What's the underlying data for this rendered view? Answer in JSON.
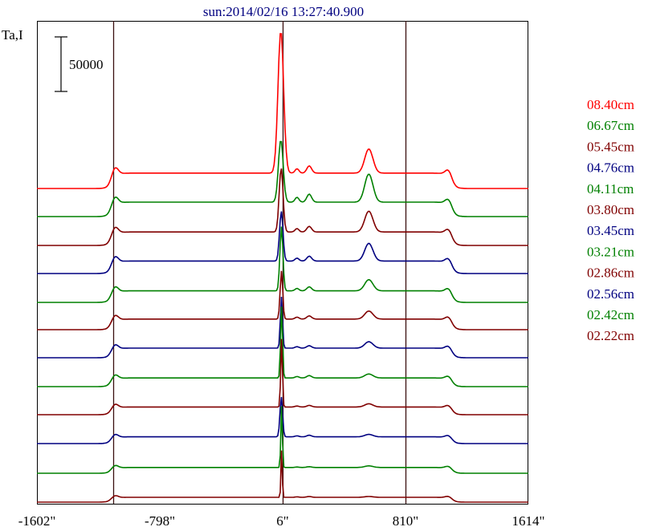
{
  "chart_data": {
    "type": "line",
    "title": "sun:2014/02/16 13:27:40.900",
    "ylabel": "Ta,I",
    "scale_bar_label": "50000",
    "x_tick_labels": [
      "-1602\"",
      "-798\"",
      "6\"",
      "810\"",
      "1614\""
    ],
    "x_ticks": [
      -1602,
      -798,
      6,
      810,
      1614
    ],
    "xlim": [
      -1602,
      1614
    ],
    "vertical_markers": [
      -1104,
      6,
      810
    ],
    "legend_position": "right",
    "series": [
      {
        "name": "08.40cm",
        "color": "#ff0000",
        "baseline": 235,
        "limb": 3.2,
        "spike": 178,
        "spike_x": -6,
        "spike_w": 26,
        "bump1": 9,
        "bump2": 30,
        "bump2_x": 570
      },
      {
        "name": "06.67cm",
        "color": "#008000",
        "baseline": 270,
        "limb": 3.0,
        "spike": 78,
        "spike_x": -6,
        "spike_w": 22,
        "bump1": 10,
        "bump2": 35,
        "bump2_x": 570
      },
      {
        "name": "05.45cm",
        "color": "#800000",
        "baseline": 306,
        "limb": 2.8,
        "spike": 80,
        "spike_x": -4,
        "spike_w": 18,
        "bump1": 7,
        "bump2": 26,
        "bump2_x": 570
      },
      {
        "name": "04.76cm",
        "color": "#000080",
        "baseline": 341,
        "limb": 2.6,
        "spike": 62,
        "spike_x": -3,
        "spike_w": 16,
        "bump1": 6,
        "bump2": 22,
        "bump2_x": 570
      },
      {
        "name": "04.11cm",
        "color": "#008000",
        "baseline": 377,
        "limb": 2.4,
        "spike": 80,
        "spike_x": -2,
        "spike_w": 14,
        "bump1": 5,
        "bump2": 14,
        "bump2_x": 570
      },
      {
        "name": "03.80cm",
        "color": "#800000",
        "baseline": 411,
        "limb": 2.2,
        "spike": 60,
        "spike_x": -2,
        "spike_w": 12,
        "bump1": 4,
        "bump2": 10,
        "bump2_x": 570
      },
      {
        "name": "03.45cm",
        "color": "#000080",
        "baseline": 446,
        "limb": 2.0,
        "spike": 64,
        "spike_x": -2,
        "spike_w": 10,
        "bump1": 3,
        "bump2": 8,
        "bump2_x": 570
      },
      {
        "name": "03.21cm",
        "color": "#008000",
        "baseline": 482,
        "limb": 1.8,
        "spike": 90,
        "spike_x": -1,
        "spike_w": 9,
        "bump1": 3,
        "bump2": 5,
        "bump2_x": 570
      },
      {
        "name": "02.86cm",
        "color": "#800000",
        "baseline": 517,
        "limb": 1.6,
        "spike": 86,
        "spike_x": -1,
        "spike_w": 8,
        "bump1": 2,
        "bump2": 4,
        "bump2_x": 570
      },
      {
        "name": "02.56cm",
        "color": "#000080",
        "baseline": 553,
        "limb": 1.4,
        "spike": 50,
        "spike_x": -3,
        "spike_w": 12,
        "bump1": 2,
        "bump2": 3,
        "bump2_x": 570
      },
      {
        "name": "02.42cm",
        "color": "#008000",
        "baseline": 590,
        "limb": 1.2,
        "spike": 78,
        "spike_x": -1,
        "spike_w": 7,
        "bump1": 1,
        "bump2": 2,
        "bump2_x": 570
      },
      {
        "name": "02.22cm",
        "color": "#800000",
        "baseline": 626,
        "limb": 1.0,
        "spike": 60,
        "spike_x": -1,
        "spike_w": 6,
        "bump1": 1,
        "bump2": 1,
        "bump2_x": 570
      }
    ]
  }
}
